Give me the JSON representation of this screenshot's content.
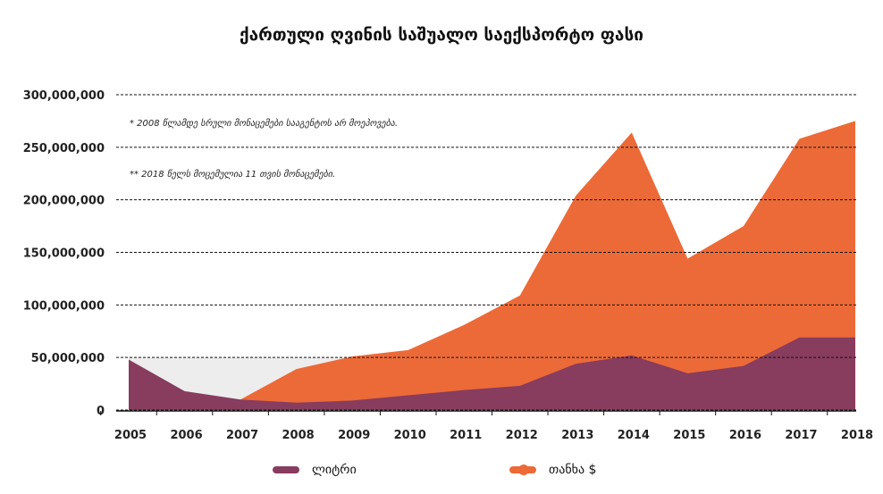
{
  "chart_data": {
    "type": "area",
    "title": "ქართული ღვინის საშუალო საექსპორტო ფასი",
    "categories": [
      "2005",
      "2006",
      "2007",
      "2008",
      "2009",
      "2010",
      "2011",
      "2012",
      "2013",
      "2014",
      "2015",
      "2016",
      "2017",
      "2018"
    ],
    "ylim": [
      0,
      300000000
    ],
    "yticks": [
      "0",
      "50,000,000",
      "100,000,000",
      "150,000,000",
      "200,000,000",
      "250,000,000",
      "300,000,000"
    ],
    "grid": true,
    "legend_position": "bottom",
    "annotations": [
      "* 2008 წლამდე სრული მონაცემები სააგენტოს არ მოეპოვება.",
      "** 2018 წელს მოცემულია 11 თვის მონაცემები."
    ],
    "series": [
      {
        "name": "ლიტრი",
        "color": "#883C5E",
        "values": [
          48000000,
          18000000,
          10000000,
          7000000,
          9000000,
          14000000,
          19000000,
          23000000,
          44000000,
          52000000,
          35000000,
          42000000,
          69000000,
          69000000
        ]
      },
      {
        "name": "თანხა $",
        "color": "#EC6A37",
        "values": [
          null,
          null,
          10000000,
          39000000,
          51000000,
          57000000,
          81000000,
          109000000,
          204000000,
          264000000,
          144000000,
          175000000,
          258000000,
          275000000
        ]
      }
    ],
    "background_band": {
      "color": "#EDEDED",
      "value": 50000000,
      "from": "2005",
      "to": "2009"
    }
  }
}
